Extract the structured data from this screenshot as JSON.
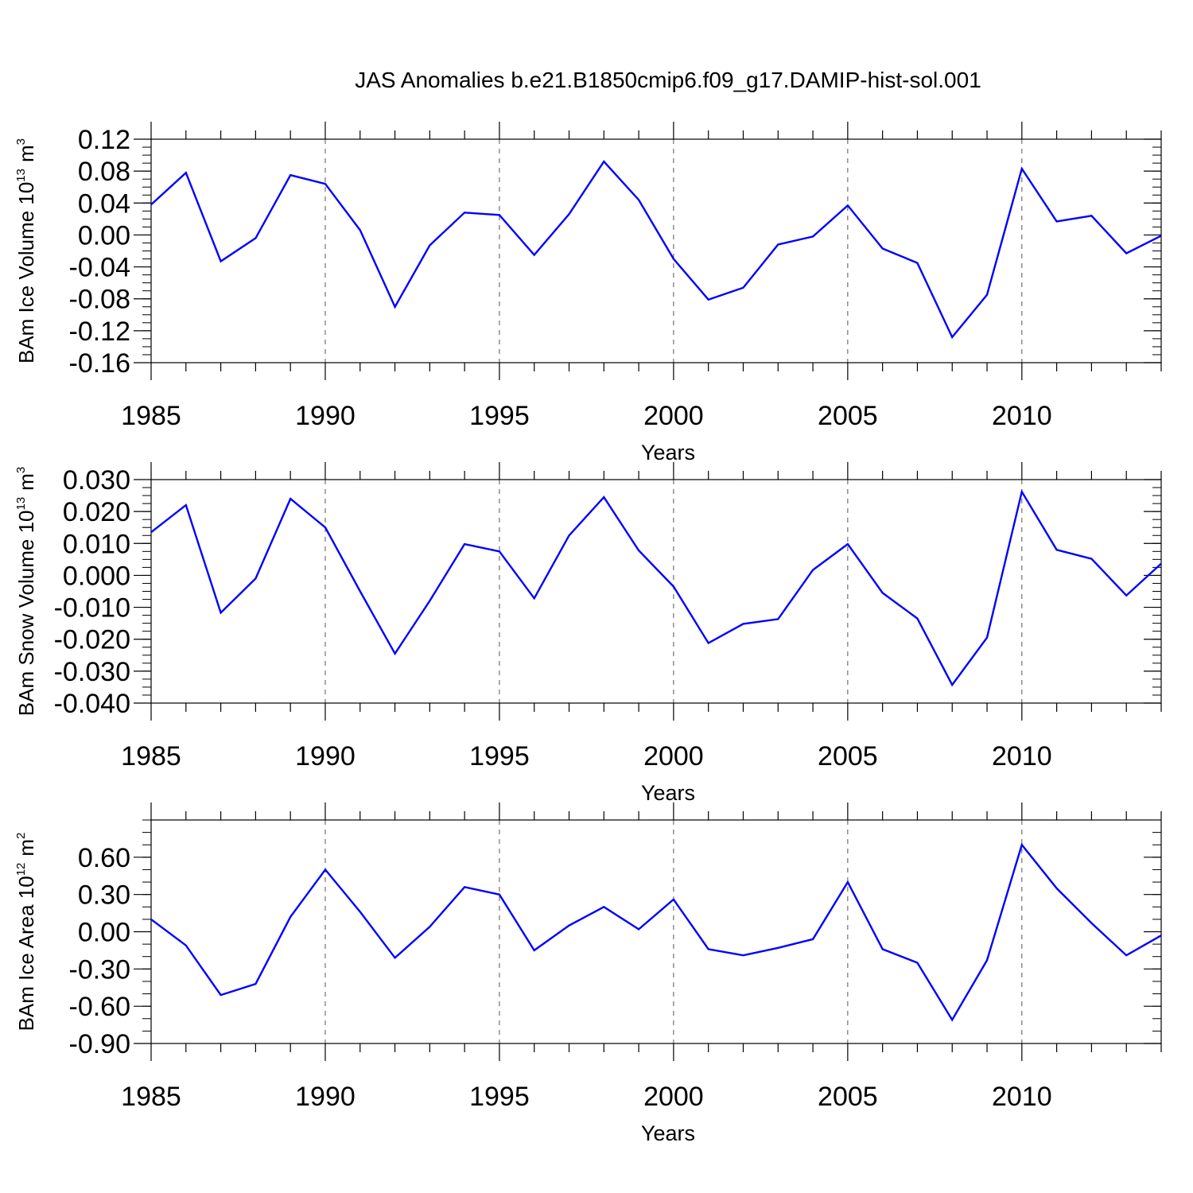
{
  "chart_data": [
    {
      "type": "line",
      "title": "JAS Anomalies b.e21.B1850cmip6.f09_g17.DAMIP-hist-sol.001",
      "ylabel": {
        "text": "BAm Ice Volume 10",
        "exponent": "13",
        "unit": "m",
        "unit_exponent": "3"
      },
      "xlabel": "Years",
      "x": [
        1985,
        1986,
        1987,
        1988,
        1989,
        1990,
        1991,
        1992,
        1993,
        1994,
        1995,
        1996,
        1997,
        1998,
        1999,
        2000,
        2001,
        2002,
        2003,
        2004,
        2005,
        2006,
        2007,
        2008,
        2009,
        2010,
        2011,
        2012,
        2013,
        2014
      ],
      "series": [
        {
          "name": "BAm Ice Volume",
          "color": "#0000ff",
          "values": [
            0.038,
            0.078,
            -0.033,
            -0.004,
            0.075,
            0.064,
            0.006,
            -0.09,
            -0.013,
            0.028,
            0.025,
            -0.025,
            0.026,
            0.092,
            0.044,
            -0.03,
            -0.081,
            -0.066,
            -0.012,
            -0.002,
            0.037,
            -0.017,
            -0.035,
            -0.128,
            -0.075,
            0.083,
            0.017,
            0.024,
            -0.023,
            -0.001
          ]
        }
      ],
      "xlim": [
        1985,
        2014
      ],
      "ylim": [
        -0.16,
        0.12
      ],
      "yticks": [
        0.12,
        0.08,
        0.04,
        0.0,
        -0.04,
        -0.08,
        -0.12,
        -0.16
      ],
      "ytick_labels": [
        "0.12",
        "0.08",
        "0.04",
        "0.00",
        "-0.04",
        "-0.08",
        "-0.12",
        "-0.16"
      ],
      "yminor_step": 0.01,
      "xticks": [
        1985,
        1990,
        1995,
        2000,
        2005,
        2010
      ],
      "xtick_labels": [
        "1985",
        "1990",
        "1995",
        "2000",
        "2005",
        "2010"
      ],
      "grid_x": [
        1990,
        1995,
        2000,
        2005,
        2010
      ]
    },
    {
      "type": "line",
      "ylabel": {
        "text": "BAm Snow Volume 10",
        "exponent": "13",
        "unit": "m",
        "unit_exponent": "3"
      },
      "xlabel": "Years",
      "x": [
        1985,
        1986,
        1987,
        1988,
        1989,
        1990,
        1991,
        1992,
        1993,
        1994,
        1995,
        1996,
        1997,
        1998,
        1999,
        2000,
        2001,
        2002,
        2003,
        2004,
        2005,
        2006,
        2007,
        2008,
        2009,
        2010,
        2011,
        2012,
        2013,
        2014
      ],
      "series": [
        {
          "name": "BAm Snow Volume",
          "color": "#0000ff",
          "values": [
            0.0135,
            0.022,
            -0.0117,
            -0.001,
            0.024,
            0.015,
            -0.005,
            -0.0245,
            -0.008,
            0.0098,
            0.0075,
            -0.0072,
            0.0125,
            0.0245,
            0.0078,
            -0.0035,
            -0.0212,
            -0.0152,
            -0.0137,
            0.0017,
            0.0098,
            -0.0055,
            -0.0135,
            -0.0343,
            -0.0195,
            0.0262,
            0.008,
            0.0052,
            -0.0063,
            0.0037
          ]
        }
      ],
      "xlim": [
        1985,
        2014
      ],
      "ylim": [
        -0.04,
        0.03
      ],
      "yticks": [
        0.03,
        0.02,
        0.01,
        0.0,
        -0.01,
        -0.02,
        -0.03,
        -0.04
      ],
      "ytick_labels": [
        "0.030",
        "0.020",
        "0.010",
        "0.000",
        "-0.010",
        "-0.020",
        "-0.030",
        "-0.040"
      ],
      "yminor_step": 0.0025,
      "xticks": [
        1985,
        1990,
        1995,
        2000,
        2005,
        2010
      ],
      "xtick_labels": [
        "1985",
        "1990",
        "1995",
        "2000",
        "2005",
        "2010"
      ],
      "grid_x": [
        1990,
        1995,
        2000,
        2005,
        2010
      ]
    },
    {
      "type": "line",
      "ylabel": {
        "text": "BAm Ice Area 10",
        "exponent": "12",
        "unit": "m",
        "unit_exponent": "2"
      },
      "xlabel": "Years",
      "x": [
        1985,
        1986,
        1987,
        1988,
        1989,
        1990,
        1991,
        1992,
        1993,
        1994,
        1995,
        1996,
        1997,
        1998,
        1999,
        2000,
        2001,
        2002,
        2003,
        2004,
        2005,
        2006,
        2007,
        2008,
        2009,
        2010,
        2011,
        2012,
        2013,
        2014
      ],
      "series": [
        {
          "name": "BAm Ice Area",
          "color": "#0000ff",
          "values": [
            0.1,
            -0.11,
            -0.51,
            -0.42,
            0.12,
            0.5,
            0.16,
            -0.21,
            0.04,
            0.36,
            0.3,
            -0.15,
            0.05,
            0.2,
            0.02,
            0.26,
            -0.14,
            -0.19,
            -0.13,
            -0.06,
            0.4,
            -0.14,
            -0.25,
            -0.71,
            -0.23,
            0.7,
            0.35,
            0.07,
            -0.19,
            -0.03
          ]
        }
      ],
      "xlim": [
        1985,
        2014
      ],
      "ylim": [
        -0.9,
        0.9
      ],
      "yticks": [
        0.6,
        0.3,
        0.0,
        -0.3,
        -0.6,
        -0.9
      ],
      "ytick_labels": [
        "0.60",
        "0.30",
        "0.00",
        "-0.30",
        "-0.60",
        "-0.90"
      ],
      "yminor_step": 0.1,
      "xticks": [
        1985,
        1990,
        1995,
        2000,
        2005,
        2010
      ],
      "xtick_labels": [
        "1985",
        "1990",
        "1995",
        "2000",
        "2005",
        "2010"
      ],
      "grid_x": [
        1990,
        1995,
        2000,
        2005,
        2010
      ]
    }
  ]
}
